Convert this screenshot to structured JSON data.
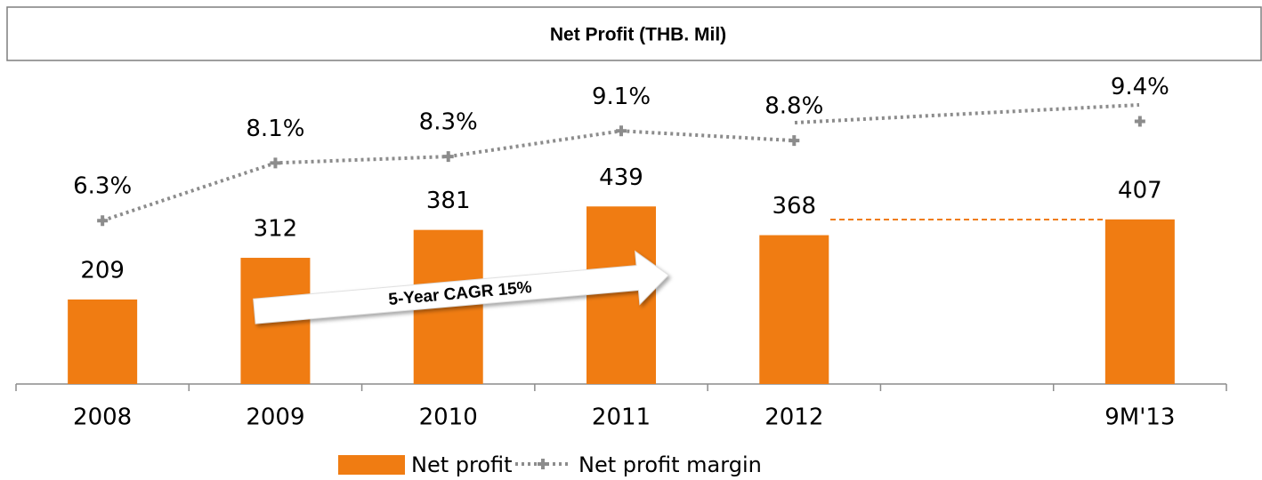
{
  "chart_data": {
    "type": "bar",
    "title": "Net Profit (THB. Mil)",
    "annotation": "5-Year CAGR 15%",
    "categories": [
      "2008",
      "2009",
      "2010",
      "2011",
      "2012",
      null,
      "9M'13"
    ],
    "ylim": [
      0,
      800
    ],
    "y2lim": [
      1.2,
      11.3
    ],
    "series": [
      {
        "name": "Net profit",
        "type": "bar",
        "color": "#f07c12",
        "values": [
          209,
          312,
          381,
          439,
          368,
          null,
          407
        ]
      },
      {
        "name": "Net profit margin",
        "type": "line",
        "axis": "y2",
        "color": "#8c8c8c",
        "values": [
          6.3,
          8.1,
          8.3,
          9.1,
          8.8,
          null,
          9.4
        ],
        "value_labels": [
          "6.3%",
          "8.1%",
          "8.3%",
          "9.1%",
          "8.8%",
          null,
          "9.4%"
        ]
      }
    ],
    "legend": "bottom"
  }
}
